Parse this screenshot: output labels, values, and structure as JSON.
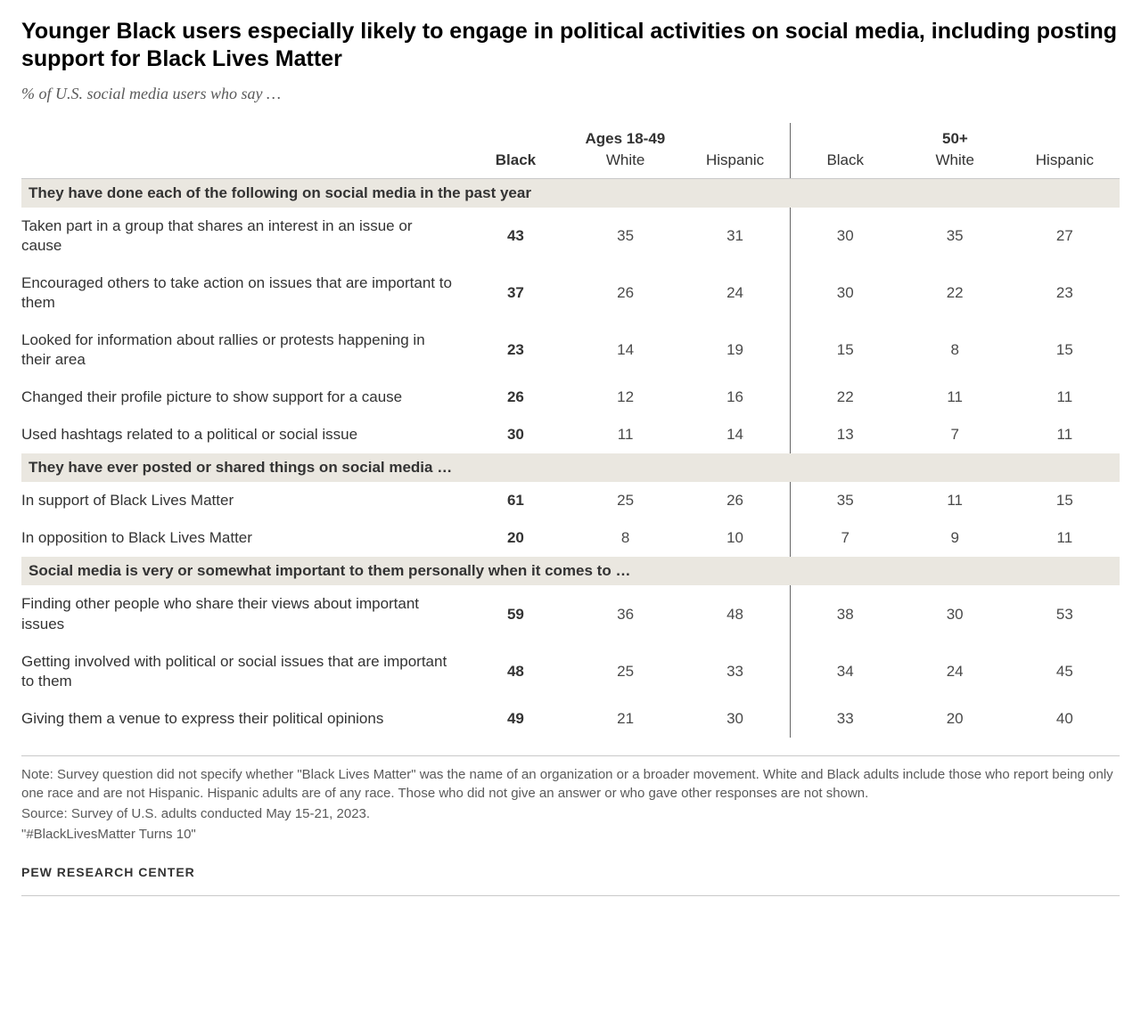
{
  "title": "Younger Black users especially likely to engage in political activities on social media, including posting support for Black Lives Matter",
  "subtitle": "% of U.S. social media users who say …",
  "groupHeaders": {
    "g1": "Ages 18-49",
    "g2": "50+"
  },
  "subHeaders": {
    "c1": "Black",
    "c2": "White",
    "c3": "Hispanic",
    "c4": "Black",
    "c5": "White",
    "c6": "Hispanic"
  },
  "sections": {
    "s1": {
      "title": "They have done each of the following on social media in the past year",
      "rows": {
        "r1": {
          "label": "Taken part in a group that shares an interest in an issue or cause",
          "v": [
            "43",
            "35",
            "31",
            "30",
            "35",
            "27"
          ]
        },
        "r2": {
          "label": "Encouraged others to take action on issues that are important to them",
          "v": [
            "37",
            "26",
            "24",
            "30",
            "22",
            "23"
          ]
        },
        "r3": {
          "label": "Looked for information about rallies or protests happening in their area",
          "v": [
            "23",
            "14",
            "19",
            "15",
            "8",
            "15"
          ]
        },
        "r4": {
          "label": "Changed their profile picture to show support for a cause",
          "v": [
            "26",
            "12",
            "16",
            "22",
            "11",
            "11"
          ]
        },
        "r5": {
          "label": "Used hashtags related to a political or social issue",
          "v": [
            "30",
            "11",
            "14",
            "13",
            "7",
            "11"
          ]
        }
      }
    },
    "s2": {
      "title": "They have ever posted or shared things on social media …",
      "rows": {
        "r1": {
          "label": "In support of Black Lives Matter",
          "v": [
            "61",
            "25",
            "26",
            "35",
            "11",
            "15"
          ]
        },
        "r2": {
          "label": "In opposition to Black Lives Matter",
          "v": [
            "20",
            "8",
            "10",
            "7",
            "9",
            "11"
          ]
        }
      }
    },
    "s3": {
      "title": "Social media is very or somewhat important to them personally when it comes to …",
      "rows": {
        "r1": {
          "label": "Finding other people who share their views about important issues",
          "v": [
            "59",
            "36",
            "48",
            "38",
            "30",
            "53"
          ]
        },
        "r2": {
          "label": "Getting involved with political or social issues that are important to them",
          "v": [
            "48",
            "25",
            "33",
            "34",
            "24",
            "45"
          ]
        },
        "r3": {
          "label": "Giving them a venue to express their political opinions",
          "v": [
            "49",
            "21",
            "30",
            "33",
            "20",
            "40"
          ]
        }
      }
    }
  },
  "note": "Note: Survey question did not specify whether \"Black Lives Matter\" was the name of an organization or a broader movement. White and Black adults include those who report being only one race and are not Hispanic. Hispanic adults are of any race. Those who did not give an answer or who gave other responses are not shown.",
  "source": "Source: Survey of U.S. adults conducted May 15-21, 2023.",
  "cite": "\"#BlackLivesMatter Turns 10\"",
  "attribution": "PEW RESEARCH CENTER",
  "style": {
    "background_color": "#ffffff",
    "section_bg": "#eae7e0",
    "text_color": "#333333",
    "muted_text": "#5a5a5a",
    "border_color": "#c9c9c9",
    "divider_color": "#666666",
    "title_fontsize": 25,
    "subtitle_fontsize": 18,
    "body_fontsize": 17,
    "note_fontsize": 15
  }
}
